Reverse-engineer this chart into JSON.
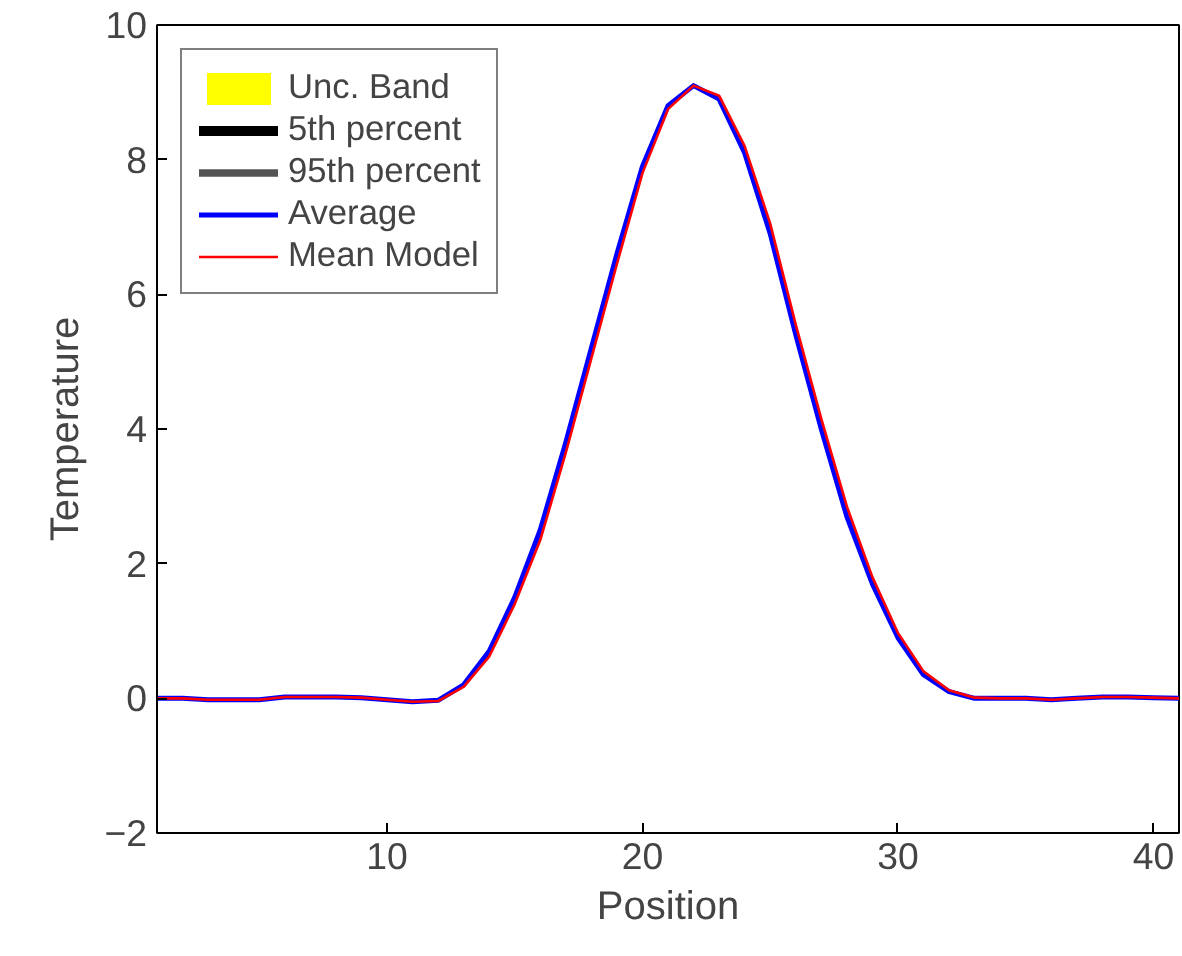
{
  "chart_data": {
    "type": "line",
    "xlabel": "Position",
    "ylabel": "Temperature",
    "x": [
      1,
      2,
      3,
      4,
      5,
      6,
      7,
      8,
      9,
      10,
      11,
      12,
      13,
      14,
      15,
      16,
      17,
      18,
      19,
      20,
      21,
      22,
      23,
      24,
      25,
      26,
      27,
      28,
      29,
      30,
      31,
      32,
      33,
      34,
      35,
      36,
      37,
      38,
      39,
      40,
      41
    ],
    "series": [
      {
        "name": "Unc. Band",
        "type": "area",
        "color": "#ffff00",
        "lower": [
          null,
          null,
          null,
          null,
          null,
          null,
          null,
          null,
          null,
          null,
          null,
          null,
          null,
          null,
          null,
          null,
          null,
          null,
          null,
          null,
          null,
          null,
          null,
          null,
          null,
          null,
          null,
          null,
          null,
          null,
          null,
          null,
          null,
          null,
          null,
          null,
          null,
          null,
          null,
          null,
          null
        ],
        "values": [
          null,
          null,
          null,
          null,
          null,
          null,
          null,
          null,
          null,
          null,
          null,
          null,
          null,
          null,
          null,
          null,
          null,
          null,
          null,
          null,
          null,
          null,
          null,
          null,
          null,
          null,
          null,
          null,
          null,
          null,
          null,
          null,
          null,
          null,
          null,
          null,
          null,
          null,
          null,
          null,
          null
        ]
      },
      {
        "name": "5th percent",
        "color": "#000000",
        "values": [
          null,
          null,
          null,
          null,
          null,
          null,
          null,
          null,
          null,
          null,
          null,
          null,
          null,
          null,
          null,
          null,
          null,
          null,
          null,
          null,
          null,
          null,
          null,
          null,
          null,
          null,
          null,
          null,
          null,
          null,
          null,
          null,
          null,
          null,
          null,
          null,
          null,
          null,
          null,
          null,
          null
        ]
      },
      {
        "name": "95th percent",
        "color": "#555555",
        "values": [
          null,
          null,
          null,
          null,
          null,
          null,
          null,
          null,
          null,
          null,
          null,
          null,
          null,
          null,
          null,
          null,
          null,
          null,
          null,
          null,
          null,
          null,
          null,
          null,
          null,
          null,
          null,
          null,
          null,
          null,
          null,
          null,
          null,
          null,
          null,
          null,
          null,
          null,
          null,
          null,
          null
        ]
      },
      {
        "name": "Average",
        "color": "#0000ff",
        "values": [
          0,
          0,
          -0.02,
          -0.02,
          -0.02,
          0.02,
          0.02,
          0.02,
          0.01,
          -0.02,
          -0.05,
          -0.03,
          0.2,
          0.7,
          1.5,
          2.5,
          3.8,
          5.2,
          6.6,
          7.9,
          8.8,
          9.1,
          8.9,
          8.1,
          6.9,
          5.4,
          4.0,
          2.7,
          1.7,
          0.9,
          0.35,
          0.1,
          0,
          0,
          0,
          -0.02,
          0,
          0.02,
          0.02,
          0.01,
          0
        ]
      },
      {
        "name": "Mean Model",
        "color": "#ff0000",
        "values": [
          0,
          0,
          -0.02,
          -0.02,
          -0.02,
          0.02,
          0.02,
          0.02,
          0.01,
          -0.02,
          -0.05,
          -0.04,
          0.17,
          0.62,
          1.4,
          2.35,
          3.65,
          5.05,
          6.45,
          7.8,
          8.75,
          9.1,
          8.95,
          8.2,
          7.05,
          5.55,
          4.15,
          2.85,
          1.8,
          0.97,
          0.4,
          0.12,
          0.01,
          0,
          0,
          -0.02,
          0,
          0.02,
          0.02,
          0.01,
          0
        ]
      }
    ],
    "xlim": [
      1,
      41
    ],
    "xticks": [
      10,
      20,
      30,
      40
    ],
    "ylim": [
      -2,
      10
    ],
    "yticks": [
      -2,
      0,
      2,
      4,
      6,
      8,
      10
    ],
    "grid": false,
    "legend": "top left",
    "marker": "none",
    "line_style": "solid"
  }
}
